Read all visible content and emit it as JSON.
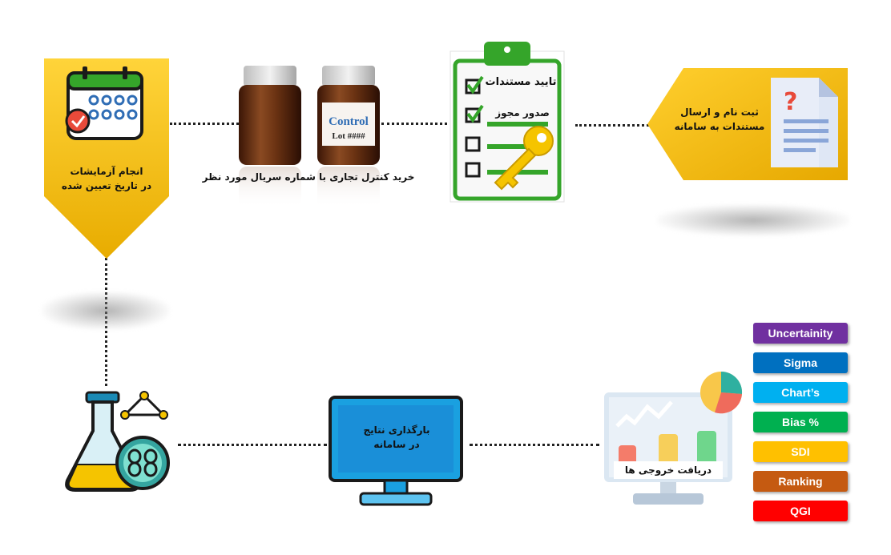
{
  "steps": {
    "register": {
      "line1": "ثبت نام و ارسال",
      "line2": "مستندات به سامانه"
    },
    "approve": {
      "line1": "تایید مستندات",
      "line2": "صدور مجوز"
    },
    "purchase": {
      "caption": "خرید کنترل تجاری با شماره سریال مورد نظر",
      "bottle_title": "Control",
      "bottle_lot": "Lot ####"
    },
    "perform": {
      "line1": "انجام آزمایشات",
      "line2": "در تاریخ تعیین شده"
    },
    "upload": {
      "line1": "بارگذاری نتایج",
      "line2": "در سامانه"
    },
    "outputs": {
      "caption": "دریافت خروجی ها"
    }
  },
  "output_tags": [
    {
      "label": "Uncertainity",
      "color": "#7030a0"
    },
    {
      "label": "Sigma",
      "color": "#0070c0"
    },
    {
      "label": "Chart’s",
      "color": "#00b0f0"
    },
    {
      "label": "Bias %",
      "color": "#00b050"
    },
    {
      "label": "SDI",
      "color": "#ffc000"
    },
    {
      "label": "Ranking",
      "color": "#c55a11"
    },
    {
      "label": "QGI",
      "color": "#ff0000"
    }
  ],
  "colors": {
    "gold": "#f5b800",
    "green": "#35a52a",
    "brown": "#5a2a10"
  }
}
